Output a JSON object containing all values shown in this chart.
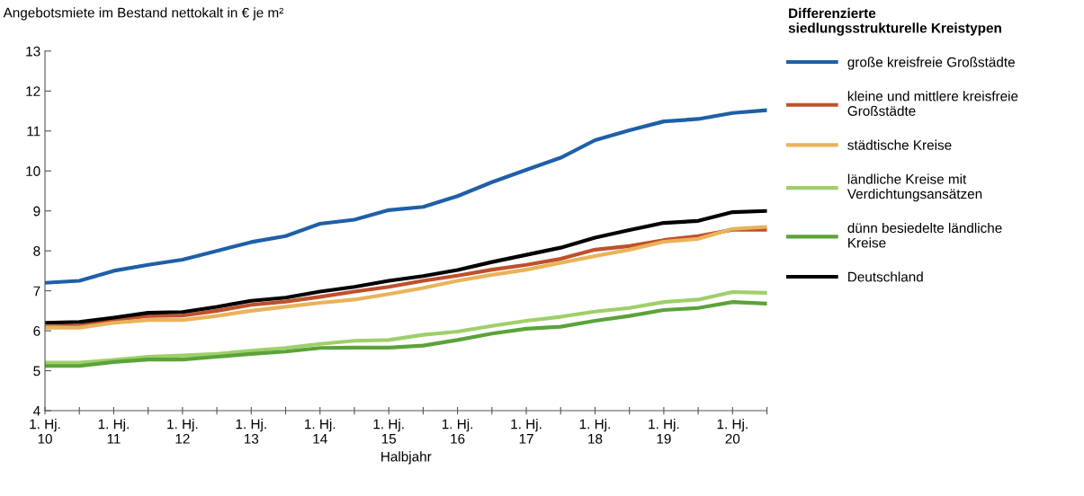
{
  "chart_data": {
    "type": "line",
    "ylabel": "Angebotsmiete im Bestand nettokalt in € je m²",
    "xlabel": "Halbjahr",
    "legend_title": "Differenzierte\nsiedlungsstrukturelle Kreistypen",
    "categories": [
      "1. Hj.\n10",
      null,
      "1. Hj.\n11",
      null,
      "1. Hj.\n12",
      null,
      "1. Hj.\n13",
      null,
      "1. Hj.\n14",
      null,
      "1. Hj.\n15",
      null,
      "1. Hj.\n16",
      null,
      "1. Hj.\n17",
      null,
      "1. Hj.\n18",
      null,
      "1. Hj.\n19",
      null,
      "1. Hj.\n20",
      null
    ],
    "ylim": [
      4,
      13
    ],
    "yticks": [
      4,
      5,
      6,
      7,
      8,
      9,
      10,
      11,
      12,
      13
    ],
    "grid": false,
    "legend": "right",
    "marker": "none",
    "line_style": "solid",
    "series": [
      {
        "name": "große kreisfreie Großstädte",
        "color": "#1f5fa8",
        "values": [
          7.2,
          7.25,
          7.5,
          7.65,
          7.78,
          8.0,
          8.22,
          8.37,
          8.68,
          8.78,
          9.02,
          9.1,
          9.37,
          9.72,
          10.03,
          10.33,
          10.77,
          11.02,
          11.24,
          11.3,
          11.45,
          11.52
        ]
      },
      {
        "name": "kleine und mittlere kreisfreie\nGroßstädte",
        "color": "#c0502a",
        "values": [
          6.1,
          6.12,
          6.27,
          6.37,
          6.38,
          6.5,
          6.65,
          6.73,
          6.85,
          6.98,
          7.1,
          7.25,
          7.38,
          7.53,
          7.65,
          7.8,
          8.03,
          8.12,
          8.27,
          8.37,
          8.53,
          8.53
        ]
      },
      {
        "name": "städtische Kreise",
        "color": "#e9b35a",
        "values": [
          6.08,
          6.08,
          6.2,
          6.27,
          6.27,
          6.37,
          6.5,
          6.6,
          6.7,
          6.78,
          6.92,
          7.07,
          7.25,
          7.4,
          7.53,
          7.7,
          7.87,
          8.03,
          8.23,
          8.3,
          8.55,
          8.6
        ]
      },
      {
        "name": "ländliche Kreise mit\nVerdichtungsansätzen",
        "color": "#9fcf6a",
        "values": [
          5.2,
          5.2,
          5.27,
          5.35,
          5.38,
          5.42,
          5.5,
          5.57,
          5.67,
          5.75,
          5.77,
          5.9,
          5.98,
          6.12,
          6.25,
          6.35,
          6.48,
          6.57,
          6.72,
          6.78,
          6.97,
          6.95
        ]
      },
      {
        "name": "dünn besiedelte ländliche\nKreise",
        "color": "#5aa33a",
        "values": [
          5.12,
          5.12,
          5.22,
          5.28,
          5.28,
          5.35,
          5.42,
          5.48,
          5.57,
          5.58,
          5.58,
          5.63,
          5.77,
          5.93,
          6.05,
          6.1,
          6.25,
          6.37,
          6.52,
          6.57,
          6.72,
          6.68
        ]
      },
      {
        "name": "Deutschland",
        "color": "#000000",
        "values": [
          6.2,
          6.22,
          6.33,
          6.45,
          6.47,
          6.6,
          6.75,
          6.83,
          6.98,
          7.1,
          7.25,
          7.37,
          7.52,
          7.72,
          7.9,
          8.08,
          8.33,
          8.52,
          8.7,
          8.75,
          8.97,
          9.0
        ]
      }
    ]
  }
}
